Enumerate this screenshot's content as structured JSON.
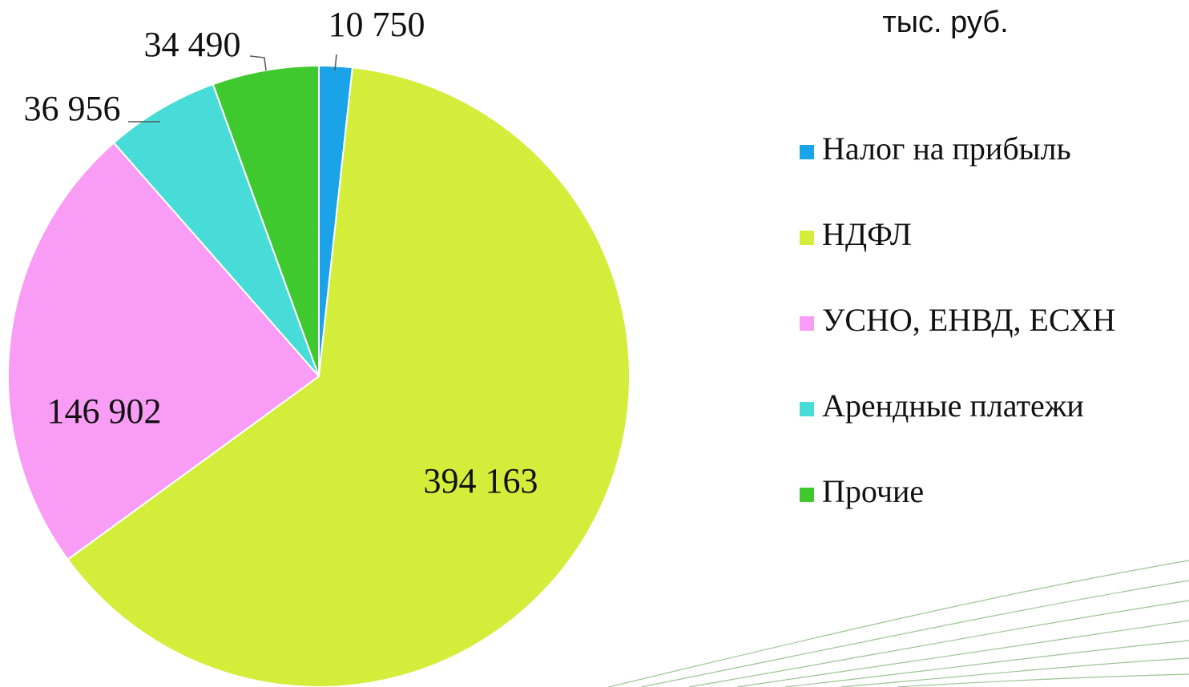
{
  "chart_data": {
    "type": "pie",
    "subtitle": "тыс. руб.",
    "categories": [
      "Налог на прибыль",
      "НДФЛ",
      "УСНО, ЕНВД, ЕСХН",
      "Арендные платежи",
      "Прочие"
    ],
    "values": [
      10750,
      394163,
      146902,
      36956,
      34490
    ],
    "value_labels": [
      "10 750",
      "394 163",
      "146 902",
      "36 956",
      "34 490"
    ],
    "colors": [
      "#1aa3e8",
      "#d4ec3a",
      "#f99cf5",
      "#48dcd8",
      "#40c92e"
    ],
    "legend": "right"
  }
}
